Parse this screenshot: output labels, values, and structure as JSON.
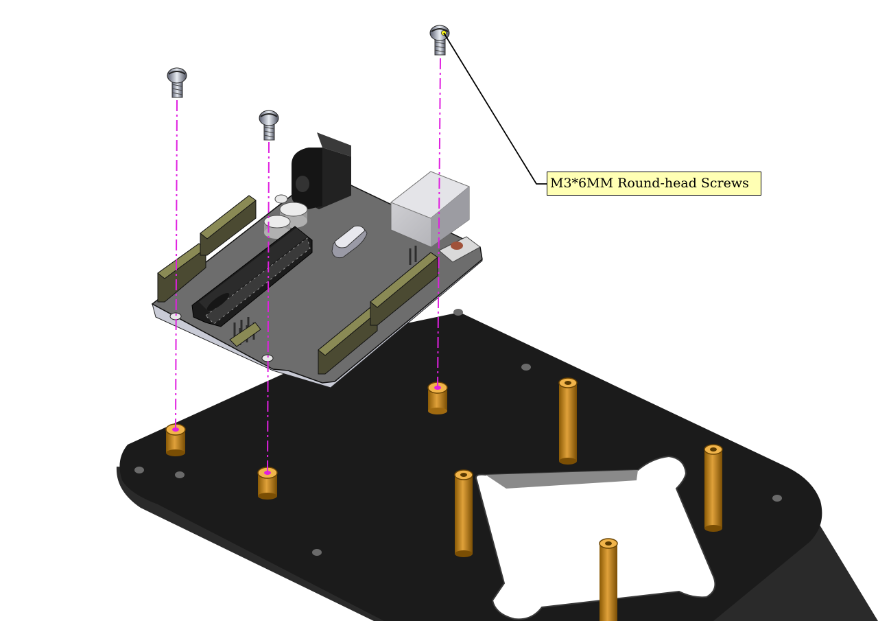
{
  "callout": {
    "label": "M3*6MM Round-head Screws"
  },
  "colors": {
    "plate": "#1b1b1b",
    "board": "#6b6b6b",
    "brass": "#c8860f",
    "guide": "#e020e0",
    "callout_fill": "#ffffb4"
  }
}
